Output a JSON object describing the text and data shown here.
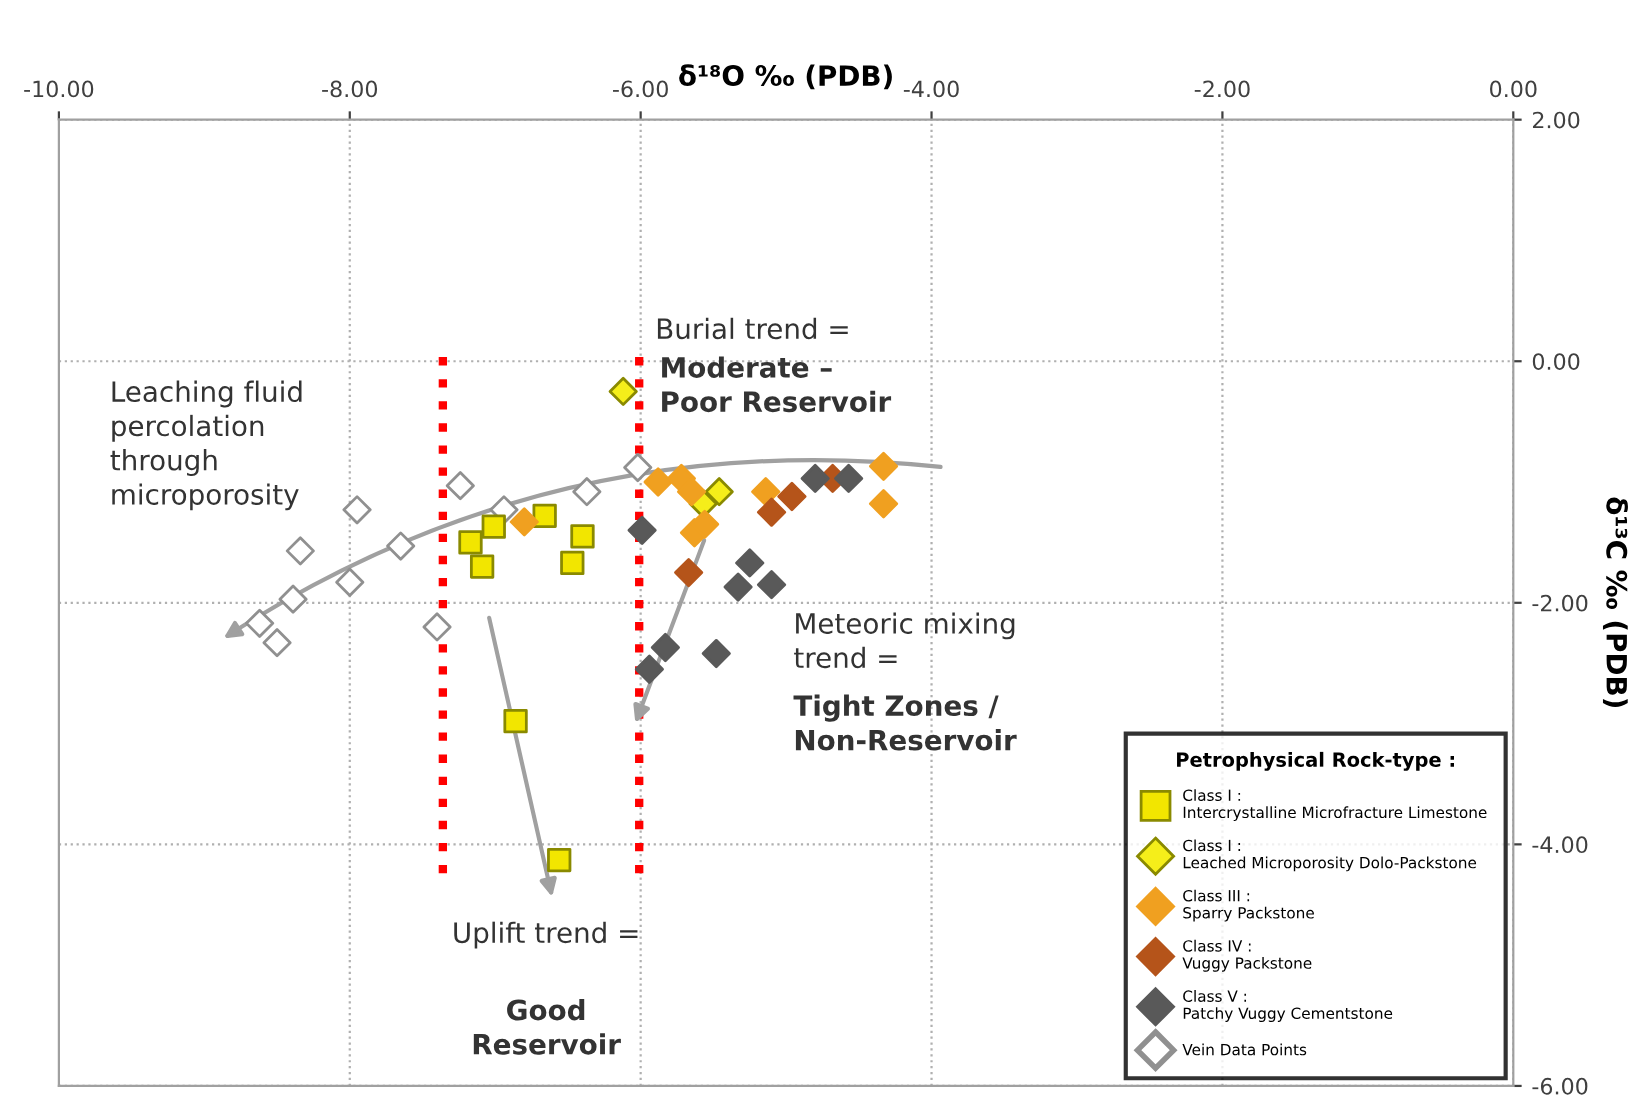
{
  "chart_data": {
    "type": "scatter",
    "xlabel": "δ¹⁸O ‰ (PDB)",
    "ylabel": "δ¹³C ‰ (PDB)",
    "xlim": [
      -10,
      0
    ],
    "ylim": [
      -6,
      2
    ],
    "xticks": [
      {
        "value": -10,
        "label": "-10.00"
      },
      {
        "value": -8,
        "label": "-8.00"
      },
      {
        "value": -6,
        "label": "-6.00"
      },
      {
        "value": -4,
        "label": "-4.00"
      },
      {
        "value": -2,
        "label": "-2.00"
      },
      {
        "value": 0,
        "label": "0.00"
      }
    ],
    "yticks": [
      {
        "value": 2,
        "label": "2.00"
      },
      {
        "value": 0,
        "label": "0.00"
      },
      {
        "value": -2,
        "label": "-2.00"
      },
      {
        "value": -4,
        "label": "-4.00"
      },
      {
        "value": -6,
        "label": "-6.00"
      }
    ],
    "grid": true,
    "legend": "bottom right",
    "legend_title": "Petrophysical Rock-type :",
    "series": [
      {
        "name": "Class I :\nIntercrystalline Microfracture Limestone",
        "color": "#f2e600",
        "marker": "square",
        "x": [
          -7.17,
          -7.01,
          -7.09,
          -6.66,
          -6.4,
          -6.47,
          -6.86,
          -6.56
        ],
        "values": [
          -1.5,
          -1.37,
          -1.7,
          -1.28,
          -1.45,
          -1.67,
          -2.98,
          -4.13
        ]
      },
      {
        "name": "Class I :\nLeached Microporosity Dolo-Packstone",
        "color": "#f5ee1a",
        "marker": "diamond",
        "x": [
          -6.12,
          -5.46,
          -5.57
        ],
        "values": [
          -0.25,
          -1.08,
          -1.18
        ]
      },
      {
        "name": "Class III :\nSparry Packstone",
        "color": "#f0a020",
        "marker": "diamond",
        "x": [
          -6.8,
          -5.88,
          -5.72,
          -5.65,
          -5.63,
          -5.56,
          -5.14,
          -4.33,
          -4.33
        ],
        "values": [
          -1.33,
          -1.0,
          -0.97,
          -1.08,
          -1.42,
          -1.35,
          -1.08,
          -0.87,
          -1.18
        ]
      },
      {
        "name": "Class IV :\nVuggy Packstone",
        "color": "#b5541a",
        "marker": "diamond",
        "x": [
          -5.67,
          -5.1,
          -4.96,
          -4.68
        ],
        "values": [
          -1.75,
          -1.25,
          -1.12,
          -0.97
        ]
      },
      {
        "name": "Class V :\nPatchy Vuggy Cementstone",
        "color": "#595959",
        "marker": "diamond",
        "x": [
          -4.8,
          -4.57,
          -5.99,
          -5.25,
          -5.33,
          -5.1,
          -5.83,
          -5.94,
          -5.48
        ],
        "values": [
          -0.97,
          -0.97,
          -1.4,
          -1.67,
          -1.87,
          -1.85,
          -2.37,
          -2.55,
          -2.42
        ]
      },
      {
        "name": "Vein Data Points",
        "color": "#ffffff",
        "marker": "diamond",
        "x": [
          -7.24,
          -7.95,
          -8.34,
          -7.65,
          -8.0,
          -8.39,
          -8.62,
          -8.5,
          -7.4,
          -6.94,
          -6.37,
          -6.02
        ],
        "values": [
          -1.03,
          -1.23,
          -1.57,
          -1.53,
          -1.83,
          -1.97,
          -2.17,
          -2.33,
          -2.2,
          -1.23,
          -1.08,
          -0.88
        ]
      }
    ],
    "ref_lines": [
      {
        "axis": "x",
        "value": -7.36,
        "color": "#ff0000",
        "line_style": "dotted"
      },
      {
        "axis": "x",
        "value": -6.01,
        "color": "#ff0000",
        "line_style": "dotted"
      }
    ],
    "annotations": [
      "Leaching fluid\npercolation\nthrough\nmicroporosity",
      "Burial trend =",
      "Moderate –\nPoor Reservoir",
      "Meteoric mixing\ntrend =",
      "Tight Zones /\nNon-Reservoir",
      "Uplift trend =",
      "Good\nReservoir"
    ]
  }
}
